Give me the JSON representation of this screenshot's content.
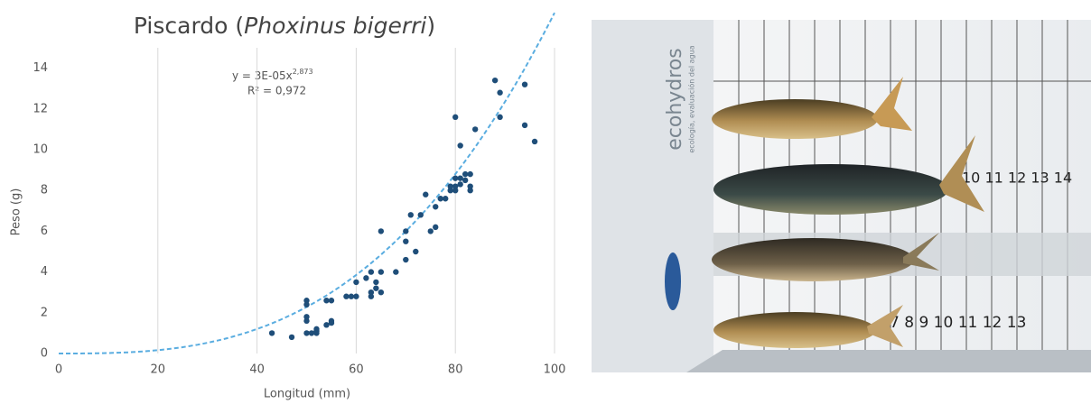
{
  "chart_data": {
    "type": "scatter",
    "title_parts": [
      "Piscardo (",
      "Phoxinus bigerri",
      ")"
    ],
    "x_label": "Longitud (mm)",
    "y_label": "Peso (g)",
    "equation": "y = 3E-05x",
    "equation_exponent": "2,873",
    "r_squared": "R² = 0,972",
    "trendline": {
      "coefficient": 3e-05,
      "exponent": 2.873,
      "color": "#5aade0"
    },
    "color": "#1f4e79",
    "x": [
      43,
      47,
      50,
      50,
      50,
      50,
      50,
      51,
      52,
      52,
      52,
      54,
      54,
      55,
      55,
      55,
      58,
      59,
      60,
      60,
      62,
      63,
      63,
      63,
      64,
      64,
      65,
      65,
      65,
      68,
      70,
      70,
      70,
      71,
      72,
      73,
      74,
      75,
      76,
      76,
      77,
      78,
      79,
      79,
      80,
      80,
      80,
      80,
      81,
      81,
      81,
      82,
      82,
      83,
      83,
      83,
      84,
      88,
      89,
      89,
      94,
      94,
      96
    ],
    "values": [
      1.0,
      0.8,
      2.6,
      2.4,
      1.8,
      1.6,
      1.0,
      1.0,
      1.1,
      1.0,
      1.2,
      1.4,
      2.6,
      1.6,
      1.5,
      2.6,
      2.8,
      2.8,
      2.8,
      3.5,
      3.7,
      2.8,
      3.0,
      4.0,
      3.2,
      3.5,
      3.0,
      4.0,
      6.0,
      4.0,
      4.6,
      5.5,
      6.0,
      6.8,
      5.0,
      6.8,
      7.8,
      6.0,
      6.2,
      7.2,
      7.6,
      7.6,
      8.0,
      8.2,
      8.2,
      11.6,
      8.0,
      8.6,
      8.3,
      10.2,
      8.6,
      8.5,
      8.8,
      8.0,
      8.2,
      8.8,
      11.0,
      13.4,
      12.8,
      11.6,
      13.2,
      11.2,
      10.4
    ],
    "xlim": [
      0,
      100
    ],
    "xticks": [
      0,
      20,
      40,
      60,
      80,
      100
    ],
    "ylim": [
      0,
      15
    ],
    "yticks": [
      0,
      2,
      4,
      6,
      8,
      10,
      12,
      14
    ],
    "grid": true
  },
  "photo": {
    "brand": "ecohydros",
    "brand_sub": "ecología, evaluación del agua",
    "ruler_top": "10 11 12 13 14",
    "ruler_bottom": "7 8 9 10 11 12 13"
  }
}
